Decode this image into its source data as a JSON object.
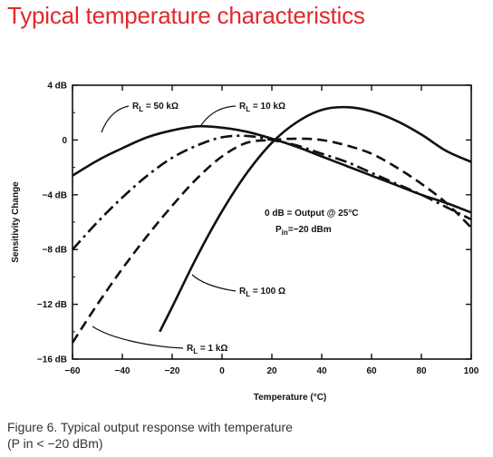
{
  "page": {
    "heading": "Typical temperature characteristics",
    "caption_line1": "Figure 6. Typical output response with temperature",
    "caption_line2": "(P in < −20 dBm)",
    "heading_color": "#e0282c"
  },
  "chart_data": {
    "type": "line",
    "title": "",
    "xlabel": "Temperature (°C)",
    "ylabel": "Sensitivity Change",
    "xlim": [
      -60,
      100
    ],
    "ylim": [
      -16,
      4
    ],
    "x_ticks": [
      -60,
      -40,
      -20,
      0,
      20,
      40,
      60,
      80,
      100
    ],
    "x_tick_labels": [
      "−60",
      "−40",
      "−20",
      "0",
      "20",
      "40",
      "60",
      "80",
      "100"
    ],
    "y_ticks": [
      4,
      0,
      -4,
      -8,
      -12,
      -16
    ],
    "y_tick_labels": [
      "4 dB",
      "0",
      "−4 dB",
      "−8 dB",
      "−12 dB",
      "−16 dB"
    ],
    "grid": false,
    "series": [
      {
        "name": "RL = 50 kΩ",
        "label_main": "R",
        "label_sub": "L",
        "label_rest": " = 50 kΩ",
        "style": "solid",
        "x": [
          -60,
          -50,
          -40,
          -30,
          -20,
          -10,
          0,
          10,
          20,
          30,
          40,
          50,
          60,
          70,
          80,
          90,
          100
        ],
        "y": [
          -2.6,
          -1.5,
          -0.6,
          0.2,
          0.7,
          1.0,
          0.9,
          0.6,
          0.1,
          -0.5,
          -1.2,
          -1.9,
          -2.6,
          -3.3,
          -4.0,
          -4.6,
          -5.3
        ]
      },
      {
        "name": "RL = 10 kΩ",
        "label_main": "R",
        "label_sub": "L",
        "label_rest": " = 10 kΩ",
        "style": "dash-dot",
        "x": [
          -60,
          -50,
          -40,
          -30,
          -20,
          -10,
          0,
          10,
          20,
          30,
          40,
          50,
          60,
          70,
          80,
          90,
          100
        ],
        "y": [
          -8.0,
          -6.0,
          -4.2,
          -2.6,
          -1.3,
          -0.4,
          0.2,
          0.3,
          0.0,
          -0.4,
          -1.0,
          -1.6,
          -2.4,
          -3.2,
          -4.0,
          -4.9,
          -5.8
        ]
      },
      {
        "name": "RL = 1 kΩ",
        "label_main": "R",
        "label_sub": "L",
        "label_rest": " = 1 kΩ",
        "style": "dashed",
        "x": [
          -60,
          -50,
          -40,
          -30,
          -20,
          -10,
          0,
          10,
          20,
          30,
          40,
          50,
          60,
          70,
          80,
          90,
          100
        ],
        "y": [
          -14.8,
          -12.0,
          -9.4,
          -7.0,
          -4.8,
          -2.8,
          -1.2,
          -0.2,
          0.0,
          0.1,
          0.0,
          -0.4,
          -1.0,
          -2.0,
          -3.2,
          -4.6,
          -6.4
        ]
      },
      {
        "name": "RL = 100 Ω",
        "label_main": "R",
        "label_sub": "L",
        "label_rest": " = 100 Ω",
        "style": "solid",
        "x": [
          -25,
          -20,
          -10,
          0,
          10,
          20,
          30,
          40,
          50,
          60,
          70,
          80,
          90,
          100
        ],
        "y": [
          -14.0,
          -12.2,
          -8.5,
          -5.2,
          -2.4,
          -0.2,
          1.3,
          2.2,
          2.4,
          2.1,
          1.4,
          0.4,
          -0.8,
          -1.6
        ]
      }
    ],
    "annotations": {
      "line1": "0 dB = Output @ 25°C",
      "line2_main": "P",
      "line2_sub": "in",
      "line2_rest": "=−20 dBm"
    }
  }
}
